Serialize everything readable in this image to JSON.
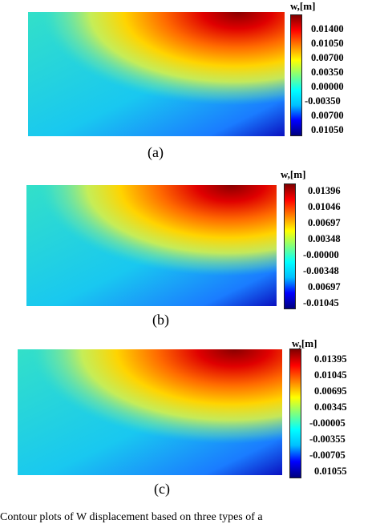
{
  "colorbar_title": "w,[m]",
  "colormap": [
    "#00007f",
    "#0000ff",
    "#00bfff",
    "#00ffff",
    "#7fff7f",
    "#ffff00",
    "#ff7f00",
    "#ff0000",
    "#7f0000"
  ],
  "panels": [
    {
      "caption": "(a)",
      "tick_labels": [
        "0.01400",
        "0.01050",
        "0.00700",
        "0.00350",
        "0.00000",
        "-0.00350",
        "0.00700",
        "0.01050"
      ]
    },
    {
      "caption": "(b)",
      "tick_labels": [
        "0.01396",
        "0.01046",
        "0.00697",
        "0.00348",
        "-0.00000",
        "-0.00348",
        "0.00697",
        "-0.01045"
      ]
    },
    {
      "caption": "(c)",
      "tick_labels": [
        "0.01395",
        "0.01045",
        "0.00695",
        "0.00345",
        "-0.00005",
        "-0.00355",
        "-0.00705",
        "0.01055"
      ]
    }
  ],
  "footer_text": "Contour plots of W displacement based on three types of a"
}
